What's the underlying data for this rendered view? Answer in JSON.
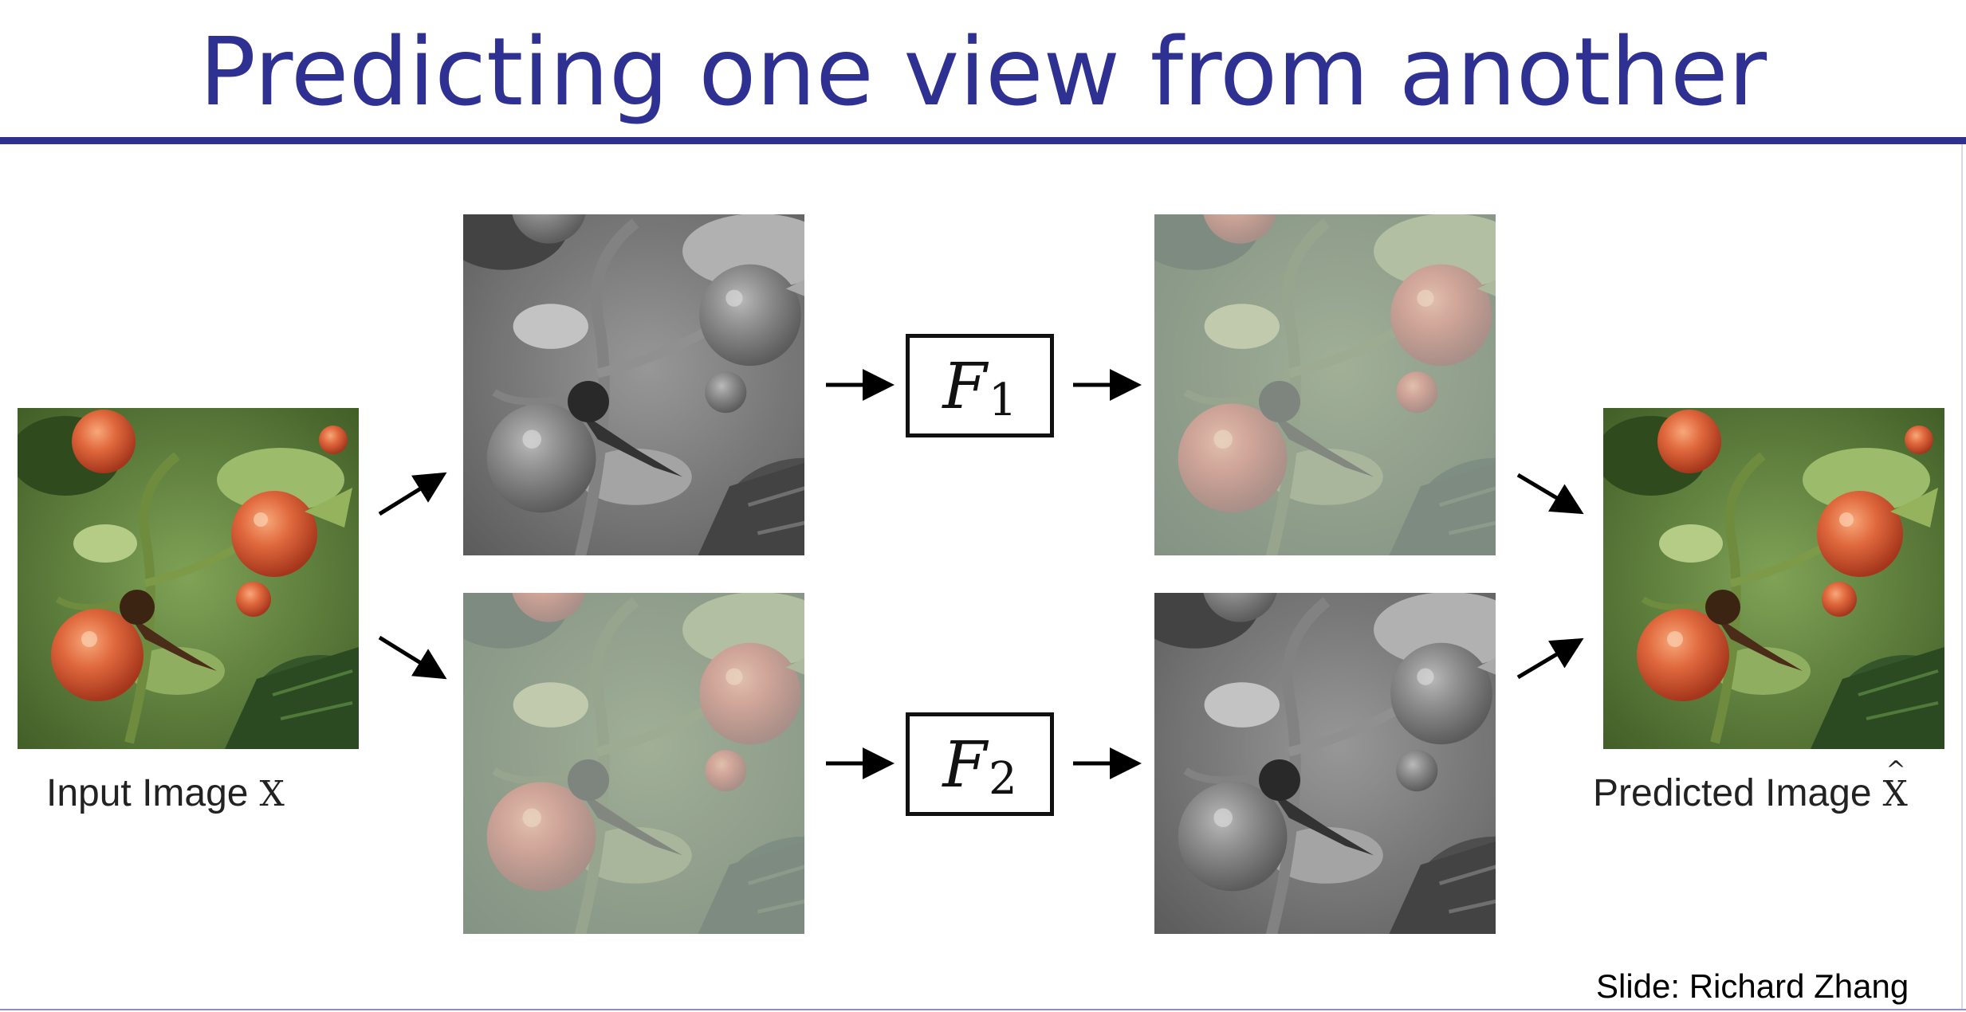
{
  "slide": {
    "title": "Predicting one view from another",
    "input_caption": "Input Image",
    "input_variable": "X",
    "output_caption": "Predicted Image",
    "output_variable": "X",
    "output_variable_hat": "^",
    "credit": "Slide: Richard Zhang",
    "title_color": "#2e3192"
  },
  "functions": [
    {
      "symbol": "F",
      "subscript": "1"
    },
    {
      "symbol": "F",
      "subscript": "2"
    }
  ],
  "panels": [
    {
      "name": "input-image",
      "channel": "color"
    },
    {
      "name": "lightness-channel-top",
      "channel": "grayscale"
    },
    {
      "name": "ab-channels-bottom",
      "channel": "color-ab"
    },
    {
      "name": "predicted-ab-channels-top",
      "channel": "color-ab"
    },
    {
      "name": "predicted-lightness-bottom",
      "channel": "grayscale"
    },
    {
      "name": "predicted-image",
      "channel": "color"
    }
  ]
}
